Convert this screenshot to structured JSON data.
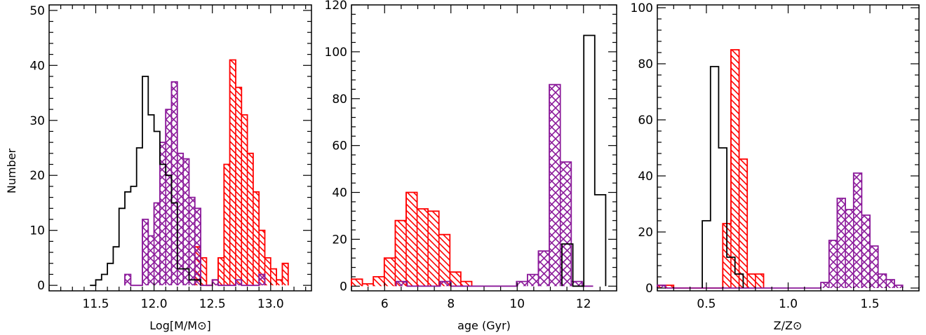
{
  "figure": {
    "y_axis_label": "Number"
  },
  "chart_data": [
    {
      "type": "histogram",
      "xlabel": "Log[M/M⊙]",
      "ylabel": "Number",
      "xlim": [
        11.1,
        13.35
      ],
      "ylim": [
        -1,
        51
      ],
      "xticks": [
        11.5,
        12.0,
        12.5,
        13.0
      ],
      "xtick_labels": [
        "11.5",
        "12.0",
        "12.5",
        "13.0"
      ],
      "yticks": [
        0,
        10,
        20,
        30,
        40,
        50
      ],
      "ytick_labels": [
        "0",
        "10",
        "20",
        "30",
        "40",
        "50"
      ],
      "bin_width": 0.05,
      "series": [
        {
          "style": "outline",
          "color": "#000000",
          "edges": [
            11.45,
            11.5,
            11.55,
            11.6,
            11.65,
            11.7,
            11.75,
            11.8,
            11.85,
            11.9,
            11.95,
            12.0,
            12.05,
            12.1,
            12.15,
            12.2,
            12.25,
            12.3,
            12.35,
            12.4
          ],
          "values": [
            0,
            1,
            2,
            4,
            7,
            14,
            17,
            18,
            25,
            38,
            31,
            28,
            22,
            20,
            15,
            3,
            3,
            1,
            1
          ]
        },
        {
          "style": "crosshatch",
          "color": "#8B1A9A",
          "edges": [
            11.75,
            11.8,
            11.85,
            11.9,
            11.95,
            12.0,
            12.05,
            12.1,
            12.15,
            12.2,
            12.25,
            12.3,
            12.35,
            12.4,
            12.45,
            12.5,
            12.55,
            12.6,
            12.65,
            12.7,
            12.75,
            12.8,
            12.85,
            12.9,
            12.95
          ],
          "values": [
            2,
            0,
            0,
            12,
            9,
            15,
            26,
            32,
            37,
            24,
            23,
            16,
            14,
            0,
            0,
            1,
            0,
            0,
            0,
            1,
            0,
            0,
            0,
            2
          ]
        },
        {
          "style": "hatch",
          "color": "#FF0000",
          "edges": [
            12.35,
            12.4,
            12.45,
            12.5,
            12.55,
            12.6,
            12.65,
            12.7,
            12.75,
            12.8,
            12.85,
            12.9,
            12.95,
            13.0,
            13.05,
            13.1,
            13.15
          ],
          "values": [
            7,
            5,
            0,
            1,
            5,
            22,
            41,
            36,
            31,
            24,
            17,
            10,
            5,
            3,
            1,
            4
          ]
        }
      ]
    },
    {
      "type": "histogram",
      "xlabel": "age (Gyr)",
      "xlim": [
        5.0,
        13.0
      ],
      "ylim": [
        -2,
        120
      ],
      "xticks": [
        6,
        8,
        10,
        12
      ],
      "xtick_labels": [
        "6",
        "8",
        "10",
        "12"
      ],
      "yticks": [
        0,
        20,
        40,
        60,
        80,
        100,
        120
      ],
      "ytick_labels": [
        "0",
        "20",
        "40",
        "60",
        "80",
        "100",
        "120"
      ],
      "bin_width": 0.33,
      "series": [
        {
          "style": "outline",
          "color": "#000000",
          "edges": [
            11.35,
            11.68,
            12.01,
            12.34,
            12.67
          ],
          "values": [
            18,
            0,
            107,
            39
          ]
        },
        {
          "style": "crosshatch",
          "color": "#8B1A9A",
          "edges": [
            6.35,
            6.68,
            7.01,
            7.34,
            7.67,
            8.0,
            8.33,
            8.66,
            8.99,
            9.32,
            9.65,
            9.98,
            10.31,
            10.64,
            10.97,
            11.3,
            11.63,
            11.96,
            12.29
          ],
          "values": [
            2,
            0,
            0,
            0,
            2,
            0,
            0,
            0,
            0,
            0,
            0,
            2,
            5,
            15,
            86,
            53,
            2,
            0
          ]
        },
        {
          "style": "hatch",
          "color": "#FF0000",
          "edges": [
            5.0,
            5.33,
            5.66,
            5.99,
            6.32,
            6.65,
            6.98,
            7.31,
            7.64,
            7.97,
            8.3,
            8.63
          ],
          "values": [
            3,
            1,
            4,
            12,
            28,
            40,
            33,
            32,
            22,
            6,
            2
          ]
        }
      ]
    },
    {
      "type": "histogram",
      "xlabel": "Z/Z⊙",
      "xlim": [
        0.2,
        1.8
      ],
      "ylim": [
        -1,
        101
      ],
      "xticks": [
        0.5,
        1.0,
        1.5
      ],
      "xtick_labels": [
        "0.5",
        "1.0",
        "1.5"
      ],
      "yticks": [
        0,
        20,
        40,
        60,
        80,
        100
      ],
      "ytick_labels": [
        "0",
        "20",
        "40",
        "60",
        "80",
        "100"
      ],
      "bin_width": 0.05,
      "series": [
        {
          "style": "outline",
          "color": "#000000",
          "edges": [
            0.475,
            0.525,
            0.575,
            0.625,
            0.675,
            0.725
          ],
          "values": [
            24,
            79,
            50,
            11,
            5
          ]
        },
        {
          "style": "crosshatch",
          "color": "#8B1A9A",
          "edges": [
            0.2,
            0.25,
            1.2,
            1.25,
            1.3,
            1.35,
            1.4,
            1.45,
            1.5,
            1.55,
            1.6,
            1.65,
            1.7
          ],
          "values": [
            1,
            0,
            2,
            17,
            32,
            28,
            41,
            26,
            15,
            5,
            3,
            1
          ]
        },
        {
          "style": "hatch",
          "color": "#FF0000",
          "edges": [
            0.2,
            0.25,
            0.3,
            0.35,
            0.4,
            0.45,
            0.5,
            0.55,
            0.6,
            0.65,
            0.7,
            0.75,
            0.8,
            0.85
          ],
          "values": [
            1,
            1,
            0,
            0,
            0,
            0,
            0,
            0,
            23,
            85,
            46,
            5,
            5
          ]
        }
      ]
    }
  ]
}
